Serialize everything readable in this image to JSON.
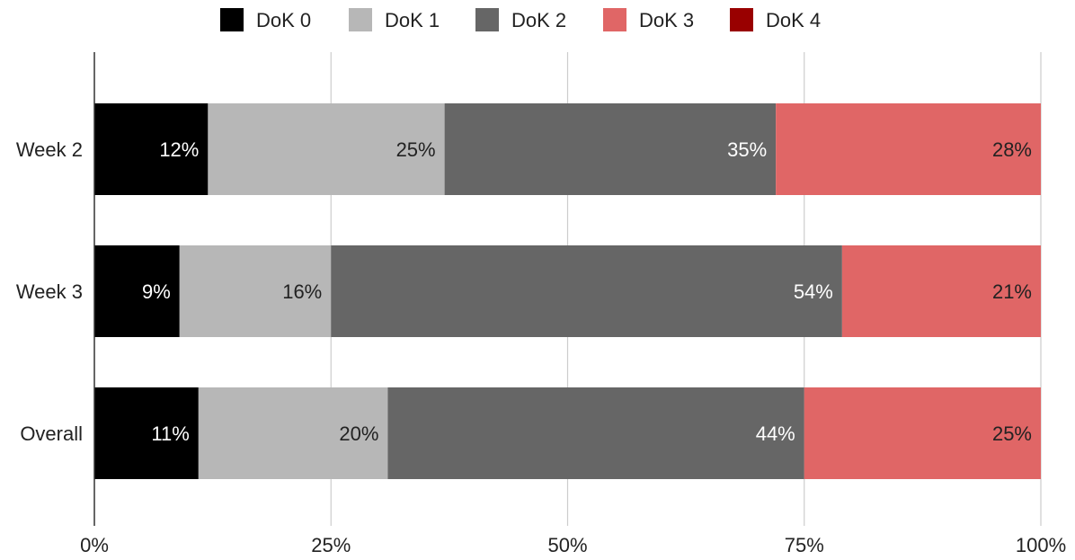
{
  "chart_data": {
    "type": "bar",
    "orientation": "horizontal",
    "stacked": "percent",
    "title": "",
    "xlabel": "",
    "ylabel": "",
    "xlim": [
      0,
      100
    ],
    "grid": true,
    "legend_position": "top",
    "x_ticks": [
      "0%",
      "25%",
      "50%",
      "75%",
      "100%"
    ],
    "categories": [
      "Week 2",
      "Week 3",
      "Overall"
    ],
    "series": [
      {
        "name": "DoK 0",
        "color": "#000000",
        "label_color": "#ffffff",
        "values": [
          12,
          9,
          11
        ],
        "labels": [
          "12%",
          "9%",
          "11%"
        ]
      },
      {
        "name": "DoK 1",
        "color": "#b7b7b7",
        "label_color": "#222222",
        "values": [
          25,
          16,
          20
        ],
        "labels": [
          "25%",
          "16%",
          "20%"
        ]
      },
      {
        "name": "DoK 2",
        "color": "#666666",
        "label_color": "#ffffff",
        "values": [
          35,
          54,
          44
        ],
        "labels": [
          "35%",
          "54%",
          "44%"
        ]
      },
      {
        "name": "DoK 3",
        "color": "#e06666",
        "label_color": "#222222",
        "values": [
          28,
          21,
          25
        ],
        "labels": [
          "28%",
          "21%",
          "25%"
        ]
      },
      {
        "name": "DoK 4",
        "color": "#990000",
        "label_color": "#ffffff",
        "values": [
          0,
          0,
          0
        ],
        "labels": [
          "",
          "",
          ""
        ]
      }
    ]
  }
}
